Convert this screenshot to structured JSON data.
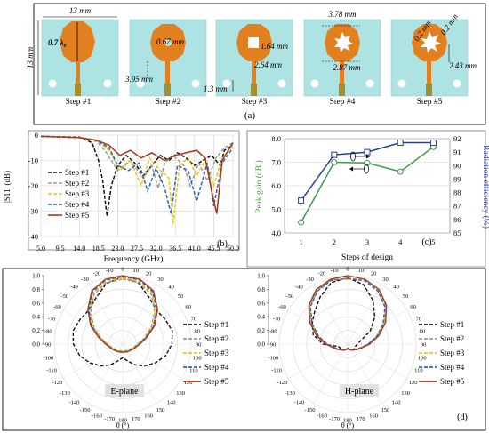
{
  "panel_a": {
    "label": "(a)",
    "colors": {
      "substrate": "#aee3e3",
      "copper": "#e27f1f",
      "feed": "#a48f2e"
    },
    "steps": [
      {
        "name": "Step #1",
        "dims": [
          "13 mm",
          "13 mm",
          "0.7 λ₀"
        ]
      },
      {
        "name": "Step #2",
        "dims": [
          "0.67 mm",
          "3.95 mm"
        ]
      },
      {
        "name": "Step #3",
        "dims": [
          "1.64 mm",
          "2.64 mm",
          "1.3 mm"
        ]
      },
      {
        "name": "Step #4",
        "dims": [
          "3.78 mm",
          "2.87 mm"
        ]
      },
      {
        "name": "Step #5",
        "dims": [
          "0.2 mm",
          "0.2 mm",
          "2.43 mm"
        ]
      }
    ]
  },
  "panel_b": {
    "label": "(b)",
    "xlabel": "Frequency (GHz)",
    "ylabel": "|S11| (dB)"
  },
  "panel_c": {
    "label": "(c)",
    "xlabel": "Steps of design",
    "ylabel_left": "Peak gain (dBi)",
    "ylabel_right": "Radiation efficiency (%)"
  },
  "panel_d": {
    "label": "(d)",
    "e_plane_label": "E-plane",
    "h_plane_label": "H-plane",
    "theta_label": "θ (°)"
  },
  "legend": [
    "Step #1",
    "Step #2",
    "Step #3",
    "Step #4",
    "Step #5"
  ],
  "chart_data": [
    {
      "type": "line",
      "xlabel": "Frequency (GHz)",
      "ylabel": "|S11| (dB)",
      "xlim": [
        5.0,
        50.0
      ],
      "ylim": [
        -40,
        0
      ],
      "x_ticks": [
        "5.0",
        "9.5",
        "14.0",
        "18.5",
        "23.0",
        "27.5",
        "32.0",
        "36.5",
        "41.0",
        "45.5",
        "50.0"
      ],
      "y_ticks": [
        0,
        -10,
        -20,
        -30,
        -40
      ],
      "legend_position": "left",
      "series": [
        {
          "name": "Step #1",
          "color": "#111111",
          "dash": "dash",
          "x": [
            5,
            14,
            17,
            18.5,
            19.5,
            20.5,
            21.5,
            23,
            25,
            27,
            29,
            31,
            33,
            35,
            37,
            39,
            41,
            43,
            45,
            47,
            48,
            50
          ],
          "y": [
            -0.5,
            -0.8,
            -3,
            -10,
            -18,
            -32,
            -20,
            -12,
            -8,
            -11,
            -16,
            -12,
            -8,
            -10,
            -7,
            -9,
            -12,
            -10,
            -8,
            -12,
            -6,
            -4
          ]
        },
        {
          "name": "Step #2",
          "color": "#9a9a9a",
          "dash": "dash",
          "x": [
            5,
            14,
            18,
            20,
            21.5,
            23,
            26,
            29,
            31,
            32.5,
            34,
            36,
            38.5,
            40,
            42,
            44,
            46,
            48,
            50
          ],
          "y": [
            -0.5,
            -1,
            -2.5,
            -6,
            -10,
            -14,
            -10,
            -17,
            -12,
            -21,
            -11,
            -8,
            -12,
            -20,
            -11,
            -18,
            -9,
            -5,
            -3
          ]
        },
        {
          "name": "Step #3",
          "color": "#f0c419",
          "dash": "dash",
          "x": [
            5,
            14,
            18,
            21,
            23.5,
            26,
            28.5,
            30.5,
            33,
            35,
            36,
            37.5,
            39.5,
            41.5,
            43.5,
            45.5,
            47.5,
            50
          ],
          "y": [
            -0.5,
            -1,
            -2,
            -6,
            -14,
            -10,
            -20,
            -9,
            -14,
            -17,
            -35,
            -12,
            -9,
            -16,
            -10,
            -20,
            -9,
            -4
          ]
        },
        {
          "name": "Step #4",
          "color": "#2e64b4",
          "dash": "dash",
          "x": [
            5,
            14,
            18,
            21,
            23,
            25.5,
            28,
            30,
            32,
            34,
            35.5,
            37,
            39.5,
            41.5,
            44,
            45.5,
            47.5,
            50
          ],
          "y": [
            -0.5,
            -1,
            -2,
            -5,
            -12,
            -14,
            -11,
            -22,
            -13,
            -21,
            -31,
            -12,
            -14,
            -26,
            -11,
            -28,
            -11,
            -5
          ]
        },
        {
          "name": "Step #5",
          "color": "#a23b1c",
          "dash": "solid",
          "x": [
            5,
            14,
            18,
            21,
            23.5,
            26,
            28.5,
            31,
            34,
            36.5,
            39,
            41.5,
            43.5,
            45,
            46.2,
            47.5,
            50
          ],
          "y": [
            -0.5,
            -1,
            -2,
            -4,
            -8,
            -6,
            -9,
            -7,
            -10,
            -8,
            -7,
            -6,
            -9,
            -22,
            -31,
            -10,
            -3
          ]
        }
      ]
    },
    {
      "type": "line",
      "xlabel": "Steps of design",
      "ylabel": "Peak gain (dBi)",
      "y2label": "Radiation efficiency (%)",
      "x": [
        1,
        2,
        3,
        4,
        5
      ],
      "xlim": [
        0.5,
        5.5
      ],
      "ylim": [
        4.0,
        8.0
      ],
      "y_ticks": [
        "4.0",
        "5.0",
        "6.0",
        "7.0",
        "8.0"
      ],
      "y2lim": [
        85,
        92
      ],
      "y2_ticks": [
        85,
        86,
        87,
        88,
        89,
        90,
        91,
        92
      ],
      "series": [
        {
          "name": "Peak gain",
          "axis": "left",
          "color": "#3d9a4a",
          "marker": "circle",
          "values": [
            4.45,
            7.0,
            6.97,
            6.6,
            7.65
          ]
        },
        {
          "name": "Radiation efficiency",
          "axis": "right",
          "color": "#2a3d8f",
          "marker": "square",
          "values": [
            87.4,
            90.8,
            91.0,
            91.7,
            91.7
          ]
        }
      ]
    },
    {
      "type": "scatter",
      "subtype": "polar",
      "annotation": "E-plane",
      "theta_label": "θ (°)",
      "r_ticks": [
        "0.0",
        "0.2",
        "0.4",
        "0.6",
        "0.8",
        "1.0"
      ],
      "theta_ticks_right": [
        0,
        10,
        20,
        30,
        40,
        50,
        60,
        70,
        80,
        90,
        100,
        110,
        120,
        130,
        140,
        150,
        160,
        170,
        180
      ],
      "theta_ticks_left": [
        -10,
        -20,
        -30,
        -40,
        -50,
        -60,
        -70,
        -80,
        -90,
        -100,
        -110,
        -120,
        -130,
        -140,
        -150,
        -160,
        -170
      ],
      "theta": [
        0,
        15,
        30,
        45,
        60,
        75,
        90,
        105,
        120,
        135,
        150,
        165,
        180,
        195,
        210,
        225,
        240,
        255,
        270,
        285,
        300,
        315,
        330,
        345
      ],
      "series": [
        {
          "name": "Step #1",
          "color": "#111111",
          "dash": "dash",
          "r": [
            0.98,
            0.92,
            0.78,
            0.7,
            0.72,
            0.75,
            0.72,
            0.65,
            0.55,
            0.45,
            0.35,
            0.25,
            0.2,
            0.25,
            0.35,
            0.45,
            0.55,
            0.65,
            0.72,
            0.75,
            0.72,
            0.7,
            0.78,
            0.92
          ]
        },
        {
          "name": "Step #2",
          "color": "#9a9a9a",
          "dash": "dash",
          "r": [
            0.95,
            0.93,
            0.84,
            0.66,
            0.48,
            0.32,
            0.22,
            0.17,
            0.14,
            0.12,
            0.11,
            0.1,
            0.1,
            0.1,
            0.11,
            0.12,
            0.14,
            0.17,
            0.22,
            0.32,
            0.48,
            0.66,
            0.84,
            0.93
          ]
        },
        {
          "name": "Step #3",
          "color": "#f0c419",
          "dash": "dash",
          "r": [
            0.97,
            0.95,
            0.86,
            0.68,
            0.5,
            0.33,
            0.23,
            0.18,
            0.15,
            0.13,
            0.12,
            0.11,
            0.11,
            0.11,
            0.12,
            0.13,
            0.15,
            0.18,
            0.23,
            0.33,
            0.5,
            0.68,
            0.86,
            0.95
          ]
        },
        {
          "name": "Step #4",
          "color": "#2e64b4",
          "dash": "dash",
          "r": [
            0.99,
            0.97,
            0.88,
            0.7,
            0.52,
            0.35,
            0.24,
            0.19,
            0.16,
            0.14,
            0.13,
            0.12,
            0.12,
            0.12,
            0.13,
            0.14,
            0.16,
            0.19,
            0.24,
            0.35,
            0.52,
            0.7,
            0.88,
            0.97
          ]
        },
        {
          "name": "Step #5",
          "color": "#a23b1c",
          "dash": "solid",
          "r": [
            1.0,
            0.98,
            0.9,
            0.72,
            0.54,
            0.36,
            0.25,
            0.19,
            0.16,
            0.14,
            0.13,
            0.12,
            0.12,
            0.12,
            0.13,
            0.14,
            0.16,
            0.19,
            0.25,
            0.36,
            0.54,
            0.72,
            0.9,
            0.98
          ]
        }
      ]
    },
    {
      "type": "scatter",
      "subtype": "polar",
      "annotation": "H-plane",
      "theta_label": "θ (°)",
      "r_ticks": [
        "0.0",
        "0.2",
        "0.4",
        "0.6",
        "0.8",
        "1.0"
      ],
      "theta_ticks_right": [
        0,
        10,
        20,
        30,
        40,
        50,
        60,
        70,
        80,
        90,
        100,
        110,
        120,
        130,
        140,
        150,
        160,
        170,
        180
      ],
      "theta_ticks_left": [
        -10,
        -20,
        -30,
        -40,
        -50,
        -60,
        -70,
        -80,
        -90,
        -100,
        -110,
        -120,
        -130,
        -140,
        -150,
        -160,
        -170
      ],
      "theta": [
        0,
        15,
        30,
        45,
        60,
        75,
        90,
        105,
        120,
        135,
        150,
        165,
        180,
        195,
        210,
        225,
        240,
        255,
        270,
        285,
        300,
        315,
        330,
        345
      ],
      "series": [
        {
          "name": "Step #1",
          "color": "#111111",
          "dash": "dash",
          "r": [
            0.97,
            0.9,
            0.74,
            0.56,
            0.38,
            0.2,
            0.14,
            0.12,
            0.12,
            0.12,
            0.1,
            0.08,
            0.06,
            0.08,
            0.1,
            0.12,
            0.12,
            0.14,
            0.36,
            0.52,
            0.6,
            0.68,
            0.8,
            0.93
          ]
        },
        {
          "name": "Step #2",
          "color": "#9a9a9a",
          "dash": "dash",
          "r": [
            0.96,
            0.97,
            0.9,
            0.78,
            0.62,
            0.45,
            0.3,
            0.2,
            0.15,
            0.12,
            0.1,
            0.08,
            0.07,
            0.08,
            0.1,
            0.12,
            0.15,
            0.2,
            0.3,
            0.45,
            0.62,
            0.78,
            0.9,
            0.97
          ]
        },
        {
          "name": "Step #3",
          "color": "#f0c419",
          "dash": "dash",
          "r": [
            0.95,
            0.97,
            0.92,
            0.8,
            0.63,
            0.46,
            0.31,
            0.2,
            0.15,
            0.12,
            0.1,
            0.08,
            0.07,
            0.08,
            0.1,
            0.12,
            0.15,
            0.2,
            0.31,
            0.46,
            0.63,
            0.8,
            0.92,
            0.97
          ]
        },
        {
          "name": "Step #4",
          "color": "#2e64b4",
          "dash": "dash",
          "r": [
            0.96,
            0.96,
            0.89,
            0.77,
            0.6,
            0.44,
            0.3,
            0.2,
            0.15,
            0.12,
            0.1,
            0.08,
            0.07,
            0.08,
            0.1,
            0.12,
            0.15,
            0.2,
            0.3,
            0.44,
            0.6,
            0.77,
            0.89,
            0.96
          ]
        },
        {
          "name": "Step #5",
          "color": "#a23b1c",
          "dash": "solid",
          "r": [
            1.0,
            0.98,
            0.92,
            0.8,
            0.64,
            0.47,
            0.32,
            0.21,
            0.16,
            0.12,
            0.1,
            0.08,
            0.07,
            0.08,
            0.1,
            0.12,
            0.16,
            0.21,
            0.32,
            0.47,
            0.64,
            0.8,
            0.92,
            0.98
          ]
        }
      ]
    }
  ]
}
